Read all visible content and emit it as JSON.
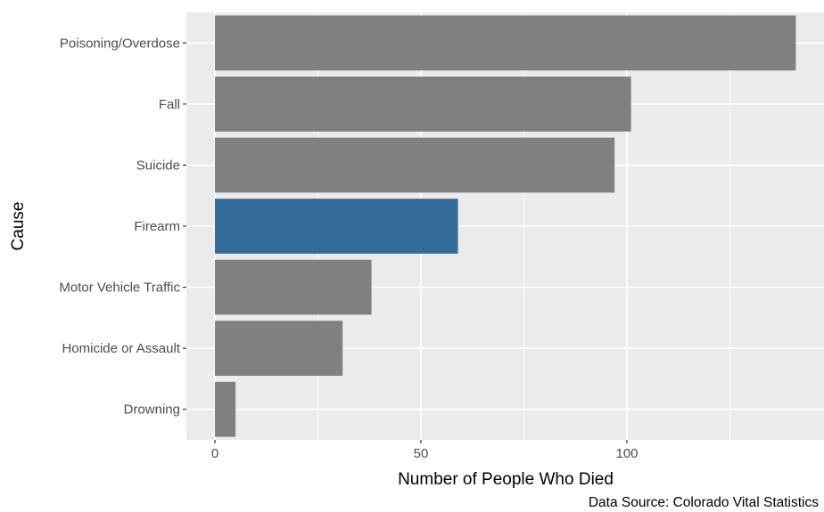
{
  "chart_data": {
    "type": "bar",
    "orientation": "horizontal",
    "categories": [
      "Poisoning/Overdose",
      "Fall",
      "Suicide",
      "Firearm",
      "Motor Vehicle Traffic",
      "Homicide or Assault",
      "Drowning"
    ],
    "values": [
      141,
      101,
      97,
      59,
      38,
      31,
      5
    ],
    "highlight": "Firearm",
    "xlabel": "Number of People Who Died",
    "ylabel": "Cause",
    "xticks": [
      0,
      50,
      100
    ],
    "xlim": [
      -7,
      148
    ],
    "grid": true,
    "caption": "Data Source: Colorado Vital Statistics"
  },
  "colors": {
    "panel_background": "#ebebeb",
    "grid_major": "#ffffff",
    "bar_default": "#808080",
    "bar_highlight": "#336b99"
  }
}
